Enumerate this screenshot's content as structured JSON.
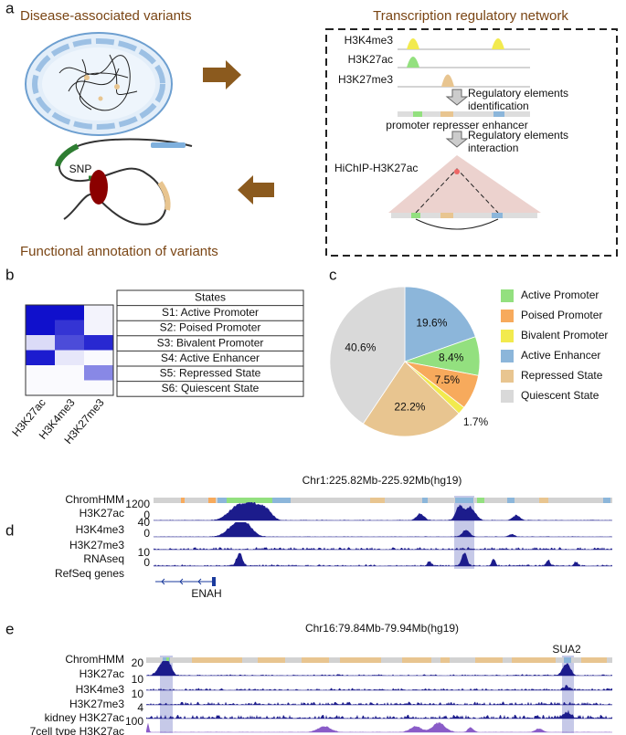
{
  "panel_a": {
    "label": "a",
    "left_title": "Disease-associated variants",
    "right_title": "Transcription regulatory network",
    "tracks": [
      "H3K4me3",
      "H3K27ac",
      "H3K27me3"
    ],
    "step1": [
      "Regulatory elements",
      "identification"
    ],
    "elements": "promoter represser enhancer",
    "step2": [
      "Regulatory elements",
      "interaction"
    ],
    "hichip": "HiChIP-H3K27ac",
    "snp": "SNP",
    "bottom_title": "Functional annotation of variants"
  },
  "panel_b": {
    "label": "b",
    "table_header": "States",
    "states": [
      "S1:  Active Promoter",
      "S2:  Poised Promoter",
      "S3:  Bivalent Promoter",
      "S4:  Active Enhancer",
      "S5:  Repressed State",
      "S6:  Quiescent State"
    ],
    "marks": [
      "H3K27ac",
      "H3K4me3",
      "H3K27me3"
    ],
    "heatmap": [
      [
        1,
        1,
        0.05
      ],
      [
        1,
        0.85,
        0.05
      ],
      [
        0.15,
        0.75,
        0.9
      ],
      [
        0.95,
        0.1,
        0.02
      ],
      [
        0.02,
        0.02,
        0.5
      ],
      [
        0.02,
        0.02,
        0.02
      ]
    ]
  },
  "panel_c": {
    "label": "c"
  },
  "chart_data": {
    "type": "pie",
    "categories": [
      "Active Promoter",
      "Poised Promoter",
      "Bivalent Promoter",
      "Active Enhancer",
      "Repressed State",
      "Quiescent State"
    ],
    "values": [
      8.4,
      7.5,
      1.7,
      19.6,
      22.2,
      40.6
    ],
    "value_labels": [
      "8.4%",
      "7.5%",
      "1.7%",
      "19.6%",
      "22.2%",
      "40.6%"
    ],
    "colors": [
      "#93e07f",
      "#f7aa5c",
      "#f2ea4e",
      "#8cb6da",
      "#e8c590",
      "#d9d9d9"
    ]
  },
  "panel_d": {
    "label": "d",
    "title": "Chr1:225.82Mb-225.92Mb(hg19)",
    "tracks": [
      "ChromHMM",
      "H3K27ac",
      "H3K4me3",
      "H3K27me3",
      "RNAseq",
      "RefSeq genes"
    ],
    "scale_labels": [
      1200,
      0,
      40,
      0,
      10,
      0
    ],
    "gene": "ENAH"
  },
  "panel_e": {
    "label": "e",
    "title": "Chr16:79.84Mb-79.94Mb(hg19)",
    "tracks": [
      "ChromHMM",
      "H3K27ac",
      "H3K4me3",
      "H3K27me3",
      "kidney H3K27ac",
      "7cell type H3K27ac"
    ],
    "scale_labels": [
      20,
      10,
      10,
      4,
      100
    ],
    "gene": "SUA2"
  }
}
